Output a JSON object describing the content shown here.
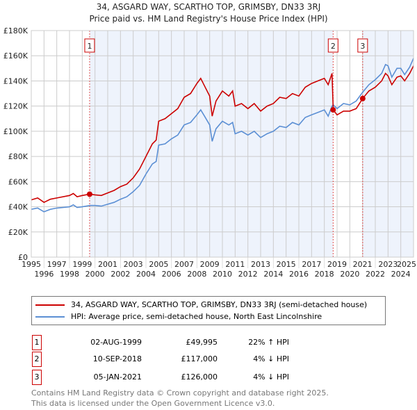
{
  "title_line1": "34, ASGARD WAY, SCARTHO TOP, GRIMSBY, DN33 3RJ",
  "title_line2": "Price paid vs. HM Land Registry's House Price Index (HPI)",
  "chart_data": {
    "type": "line",
    "xlim": [
      1995,
      2025
    ],
    "ylim": [
      0,
      180000
    ],
    "x_ticks": [
      "1995",
      "1996",
      "1997",
      "1998",
      "1999",
      "2000",
      "2001",
      "2002",
      "2003",
      "2004",
      "2005",
      "2006",
      "2007",
      "2008",
      "2009",
      "2010",
      "2011",
      "2012",
      "2013",
      "2014",
      "2015",
      "2016",
      "2017",
      "2018",
      "2019",
      "2020",
      "2021",
      "2022",
      "2023",
      "2024",
      "2025"
    ],
    "y_ticks": [
      {
        "v": 0,
        "label": "£0"
      },
      {
        "v": 20000,
        "label": "£20K"
      },
      {
        "v": 40000,
        "label": "£40K"
      },
      {
        "v": 60000,
        "label": "£60K"
      },
      {
        "v": 80000,
        "label": "£80K"
      },
      {
        "v": 100000,
        "label": "£100K"
      },
      {
        "v": 120000,
        "label": "£120K"
      },
      {
        "v": 140000,
        "label": "£140K"
      },
      {
        "v": 160000,
        "label": "£160K"
      },
      {
        "v": 180000,
        "label": "£180K"
      }
    ],
    "grid": true,
    "legend_placement": "below",
    "series": [
      {
        "name": "34, ASGARD WAY, SCARTHO TOP, GRIMSBY, DN33 3RJ (semi-detached house)",
        "color": "#cc0000",
        "x": [
          1995,
          1995.5,
          1996,
          1996.5,
          1997,
          1998,
          1998.3,
          1998.6,
          1999,
          1999.58,
          2000,
          2000.5,
          2001,
          2001.5,
          2002,
          2002.5,
          2003,
          2003.5,
          2004,
          2004.5,
          2004.8,
          2005,
          2005.5,
          2006,
          2006.5,
          2007,
          2007.5,
          2008,
          2008.3,
          2008.6,
          2009,
          2009.2,
          2009.5,
          2010,
          2010.5,
          2010.8,
          2011,
          2011.5,
          2012,
          2012.5,
          2013,
          2013.5,
          2014,
          2014.5,
          2015,
          2015.5,
          2016,
          2016.5,
          2017,
          2017.5,
          2018,
          2018.3,
          2018.6,
          2018.7,
          2019,
          2019.5,
          2020,
          2020.5,
          2021.01,
          2021.5,
          2022,
          2022.5,
          2022.8,
          2023,
          2023.3,
          2023.7,
          2024,
          2024.3,
          2024.7,
          2025
        ],
        "y": [
          45.5,
          47,
          43.5,
          46,
          47,
          49,
          50.5,
          48,
          49,
          50,
          49.5,
          49,
          51,
          53,
          56,
          58,
          63,
          70,
          80,
          90,
          93,
          108,
          110,
          114,
          118,
          127,
          130,
          138,
          142,
          136,
          128,
          112,
          124,
          132,
          128,
          132,
          120,
          122,
          118,
          122,
          116,
          120,
          122,
          127,
          126,
          130,
          128,
          135,
          138,
          140,
          142,
          137,
          146,
          117,
          113,
          116,
          116,
          118,
          126,
          132,
          135,
          140,
          146,
          144,
          137,
          143,
          144,
          140,
          146,
          152
        ]
      },
      {
        "name": "HPI: Average price, semi-detached house, North East Lincolnshire",
        "color": "#5b8fd4",
        "x": [
          1995,
          1995.5,
          1996,
          1996.5,
          1997,
          1998,
          1998.3,
          1998.6,
          1999,
          1999.58,
          2000,
          2000.5,
          2001,
          2001.5,
          2002,
          2002.5,
          2003,
          2003.5,
          2004,
          2004.5,
          2004.8,
          2005,
          2005.5,
          2006,
          2006.5,
          2007,
          2007.5,
          2008,
          2008.3,
          2008.6,
          2009,
          2009.2,
          2009.5,
          2010,
          2010.5,
          2010.8,
          2011,
          2011.5,
          2012,
          2012.5,
          2013,
          2013.5,
          2014,
          2014.5,
          2015,
          2015.5,
          2016,
          2016.5,
          2017,
          2017.5,
          2018,
          2018.3,
          2018.6,
          2018.7,
          2019,
          2019.5,
          2020,
          2020.5,
          2021.01,
          2021.5,
          2022,
          2022.5,
          2022.8,
          2023,
          2023.3,
          2023.7,
          2024,
          2024.3,
          2024.7,
          2025
        ],
        "y": [
          38,
          39,
          36,
          38,
          39,
          40,
          41.5,
          39.5,
          40,
          41,
          41,
          40.5,
          42,
          43.5,
          46,
          48,
          52,
          57,
          66,
          74,
          76,
          89,
          90,
          94,
          97,
          105,
          107,
          113,
          117,
          112,
          105,
          92,
          102,
          108,
          105,
          107,
          98,
          100,
          97,
          100,
          95,
          98,
          100,
          104,
          103,
          107,
          105,
          111,
          113,
          115,
          117,
          112,
          120,
          121,
          118,
          122,
          121,
          124,
          131,
          137,
          141,
          146,
          153,
          152,
          143,
          150,
          150,
          145,
          151,
          158
        ]
      }
    ],
    "y_unit_multiplier": 1000,
    "sales": [
      {
        "id": "1",
        "x": 1999.58,
        "price": 49995
      },
      {
        "id": "2",
        "x": 2018.69,
        "price": 117000
      },
      {
        "id": "3",
        "x": 2021.01,
        "price": 126000
      }
    ],
    "shaded_ranges": [
      [
        1999.58,
        2018.69
      ],
      [
        2021.01,
        2025
      ]
    ]
  },
  "legend": {
    "property": "34, ASGARD WAY, SCARTHO TOP, GRIMSBY, DN33 3RJ (semi-detached house)",
    "hpi": "HPI: Average price, semi-detached house, North East Lincolnshire"
  },
  "transactions": [
    {
      "num": "1",
      "date": "02-AUG-1999",
      "price": "£49,995",
      "hpi": "22% ↑ HPI"
    },
    {
      "num": "2",
      "date": "10-SEP-2018",
      "price": "£117,000",
      "hpi": "4% ↓ HPI"
    },
    {
      "num": "3",
      "date": "05-JAN-2021",
      "price": "£126,000",
      "hpi": "4% ↓ HPI"
    }
  ],
  "footer": {
    "line1": "Contains HM Land Registry data © Crown copyright and database right 2025.",
    "line2": "This data is licensed under the Open Government Licence v3.0."
  }
}
